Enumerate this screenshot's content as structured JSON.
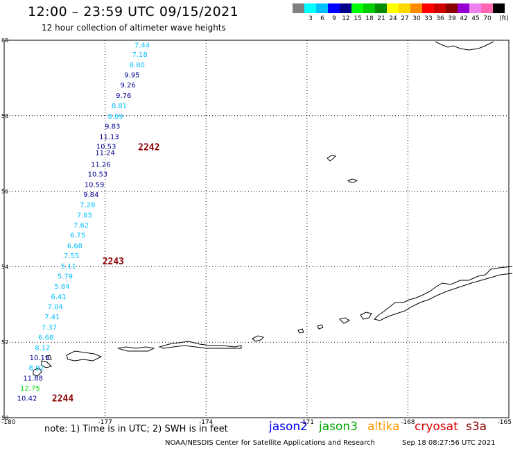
{
  "header": {
    "title": "12:00 – 23:59 UTC 09/15/2021",
    "subtitle": "12 hour collection of altimeter wave heights"
  },
  "colorbar": {
    "unit": "(ft)",
    "cells": [
      {
        "color": "#808080",
        "label": ""
      },
      {
        "color": "#00ffff",
        "label": "3"
      },
      {
        "color": "#00bfff",
        "label": "6"
      },
      {
        "color": "#0000ff",
        "label": "9"
      },
      {
        "color": "#00008b",
        "label": "12"
      },
      {
        "color": "#00ff00",
        "label": "15"
      },
      {
        "color": "#00cd00",
        "label": "18"
      },
      {
        "color": "#008b00",
        "label": "21"
      },
      {
        "color": "#ffff00",
        "label": "24"
      },
      {
        "color": "#ffd700",
        "label": "27"
      },
      {
        "color": "#ff8c00",
        "label": "30"
      },
      {
        "color": "#ff0000",
        "label": "33"
      },
      {
        "color": "#cd0000",
        "label": "36"
      },
      {
        "color": "#8b0000",
        "label": "39"
      },
      {
        "color": "#9400d3",
        "label": "42"
      },
      {
        "color": "#ee82ee",
        "label": "45"
      },
      {
        "color": "#ff69b4",
        "label": "70"
      },
      {
        "color": "#000000",
        "label": ""
      }
    ]
  },
  "map": {
    "lon_ticks": [
      "-180",
      "-177",
      "-174",
      "-171",
      "-168",
      "-165"
    ],
    "lon_values": [
      -180,
      -177,
      -174,
      -171,
      -168,
      -165
    ],
    "lat_ticks": [
      "60",
      "58",
      "56",
      "54",
      "52",
      "50"
    ],
    "lat_values": [
      60,
      58,
      56,
      54,
      52,
      50
    ],
    "lon_range": [
      -180,
      -165
    ],
    "lat_range": [
      50,
      60
    ],
    "grid": "dotted",
    "track_colors": {
      "light": "#00bfff",
      "dark": "#00008b",
      "green": "#00dd00"
    },
    "observations": [
      {
        "value": "7.44",
        "lat": 59.88,
        "lon": -175.9,
        "color": "light"
      },
      {
        "value": "7.18",
        "lat": 59.63,
        "lon": -175.97,
        "color": "light"
      },
      {
        "value": "8.80",
        "lat": 59.36,
        "lon": -176.05,
        "color": "light"
      },
      {
        "value": "9.95",
        "lat": 59.09,
        "lon": -176.2,
        "color": "dark"
      },
      {
        "value": "9.26",
        "lat": 58.82,
        "lon": -176.32,
        "color": "dark"
      },
      {
        "value": "9.76",
        "lat": 58.55,
        "lon": -176.45,
        "color": "dark"
      },
      {
        "value": "8.81",
        "lat": 58.27,
        "lon": -176.58,
        "color": "light"
      },
      {
        "value": "8.69",
        "lat": 58.0,
        "lon": -176.69,
        "color": "light"
      },
      {
        "value": "9.83",
        "lat": 57.73,
        "lon": -176.78,
        "color": "dark"
      },
      {
        "value": "11.13",
        "lat": 57.45,
        "lon": -176.88,
        "color": "dark"
      },
      {
        "value": "10.53",
        "lat": 57.2,
        "lon": -176.97,
        "color": "dark"
      },
      {
        "value": "11.24",
        "lat": 57.03,
        "lon": -177.0,
        "color": "dark"
      },
      {
        "value": "11.26",
        "lat": 56.72,
        "lon": -177.13,
        "color": "dark"
      },
      {
        "value": "10.53",
        "lat": 56.46,
        "lon": -177.22,
        "color": "dark"
      },
      {
        "value": "10.59",
        "lat": 56.19,
        "lon": -177.32,
        "color": "dark"
      },
      {
        "value": "9.84",
        "lat": 55.92,
        "lon": -177.42,
        "color": "dark"
      },
      {
        "value": "7.28",
        "lat": 55.65,
        "lon": -177.52,
        "color": "light"
      },
      {
        "value": "7.65",
        "lat": 55.38,
        "lon": -177.61,
        "color": "light"
      },
      {
        "value": "7.62",
        "lat": 55.11,
        "lon": -177.71,
        "color": "light"
      },
      {
        "value": "6.75",
        "lat": 54.84,
        "lon": -177.81,
        "color": "light"
      },
      {
        "value": "6.68",
        "lat": 54.57,
        "lon": -177.9,
        "color": "light"
      },
      {
        "value": "7.55",
        "lat": 54.3,
        "lon": -178.0,
        "color": "light"
      },
      {
        "value": "5.11",
        "lat": 54.03,
        "lon": -178.09,
        "color": "light"
      },
      {
        "value": "5.79",
        "lat": 53.76,
        "lon": -178.19,
        "color": "light"
      },
      {
        "value": "5.84",
        "lat": 53.49,
        "lon": -178.28,
        "color": "light"
      },
      {
        "value": "6.41",
        "lat": 53.22,
        "lon": -178.38,
        "color": "light"
      },
      {
        "value": "7.04",
        "lat": 52.95,
        "lon": -178.48,
        "color": "light"
      },
      {
        "value": "7.41",
        "lat": 52.68,
        "lon": -178.57,
        "color": "light"
      },
      {
        "value": "7.37",
        "lat": 52.41,
        "lon": -178.66,
        "color": "light"
      },
      {
        "value": "6.68",
        "lat": 52.14,
        "lon": -178.76,
        "color": "light"
      },
      {
        "value": "8.12",
        "lat": 51.87,
        "lon": -178.86,
        "color": "light"
      },
      {
        "value": "10.19",
        "lat": 51.6,
        "lon": -178.95,
        "color": "dark"
      },
      {
        "value": "8.92",
        "lat": 51.33,
        "lon": -179.04,
        "color": "light"
      },
      {
        "value": "11.88",
        "lat": 51.06,
        "lon": -179.14,
        "color": "dark"
      },
      {
        "value": "12.75",
        "lat": 50.79,
        "lon": -179.23,
        "color": "green"
      },
      {
        "value": "10.42",
        "lat": 50.52,
        "lon": -179.32,
        "color": "dark"
      }
    ],
    "pass_labels": [
      {
        "text": "2242",
        "lat": 57.18,
        "lon": -176.02
      },
      {
        "text": "2243",
        "lat": 54.15,
        "lon": -177.08
      },
      {
        "text": "2244",
        "lat": 50.52,
        "lon": -178.58
      }
    ],
    "pass_label_color": "#8b0000"
  },
  "note": "note: 1) Time is in UTC; 2) SWH is in feet",
  "satellites": [
    {
      "name": "jason2",
      "color": "#0000ee"
    },
    {
      "name": "jason3",
      "color": "#00aa00"
    },
    {
      "name": "altika",
      "color": "#ff9900"
    },
    {
      "name": "cryosat",
      "color": "#dd0000"
    },
    {
      "name": "s3a",
      "color": "#8b0000"
    }
  ],
  "footer": "NOAA/NESDIS Center for Satellite Applications and Research",
  "timestamp": "Sep 18 08:27:56 UTC 2021"
}
